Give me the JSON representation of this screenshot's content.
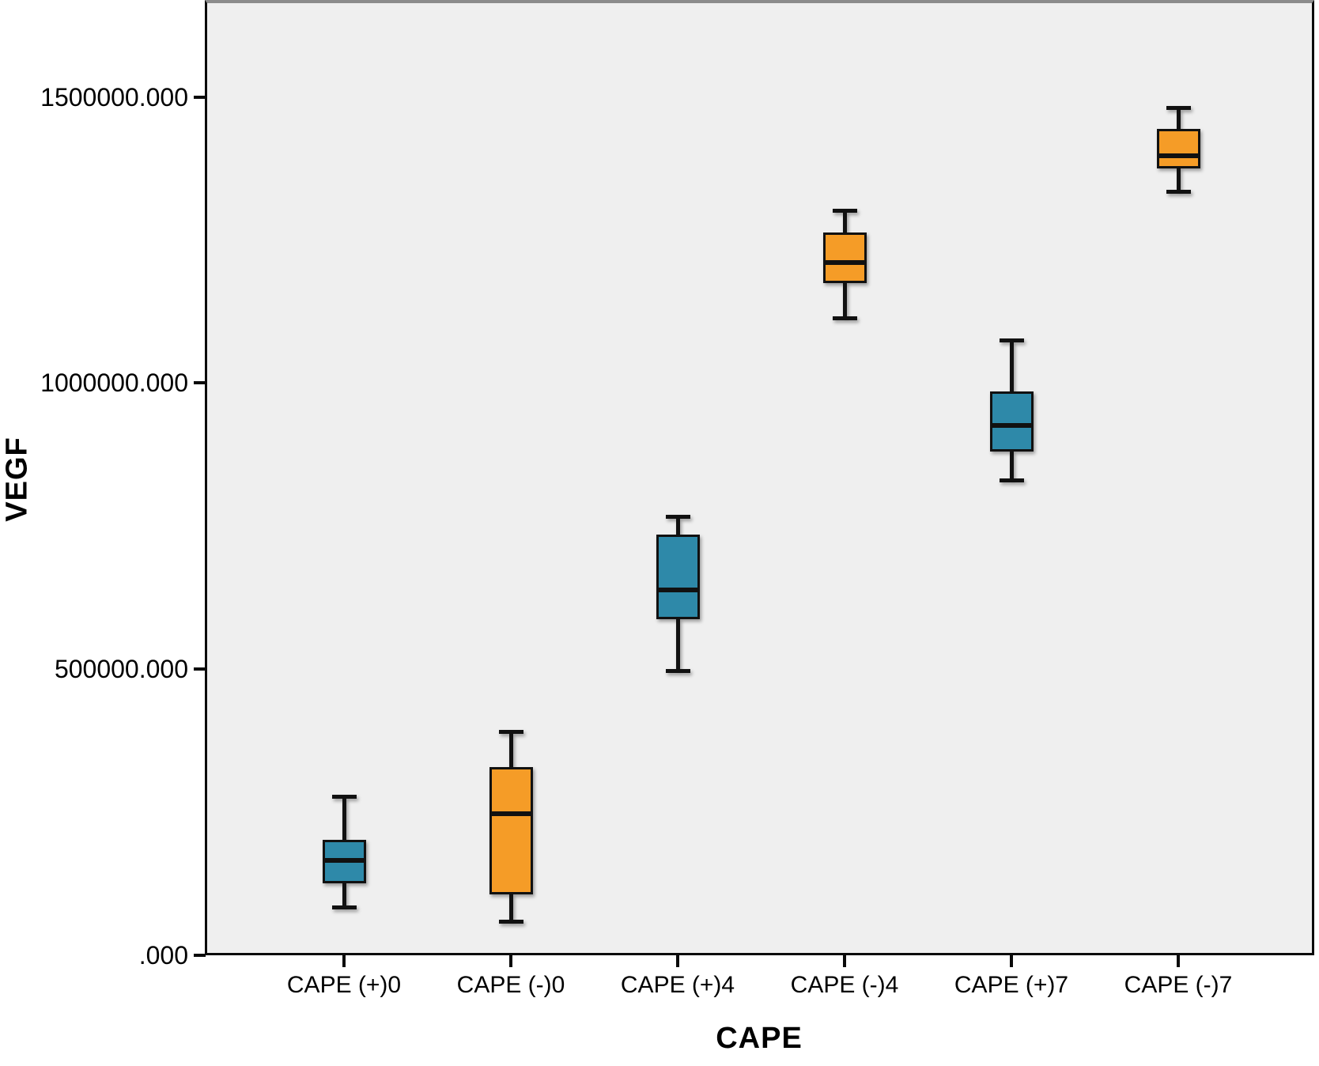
{
  "figure": {
    "background": "#FFFFFF",
    "plot_background": "#EFEFEF",
    "frame_color": "#0A0A0A",
    "top_border_color": "#8C8C8C"
  },
  "chart_data": {
    "type": "boxplot",
    "title": "",
    "xlabel": "CAPE",
    "ylabel": "VEGF",
    "grid": false,
    "legend": false,
    "ylim": [
      0,
      1664000
    ],
    "y_ticks": [
      {
        "value": 0,
        "label": ".000"
      },
      {
        "value": 500000,
        "label": "500000.000"
      },
      {
        "value": 1000000,
        "label": "1000000.000"
      },
      {
        "value": 1500000,
        "label": "1500000.000"
      }
    ],
    "categories": [
      "CAPE (+)0",
      "CAPE (-)0",
      "CAPE (+)4",
      "CAPE (-)4",
      "CAPE (+)7",
      "CAPE (-)7"
    ],
    "boxes": [
      {
        "category": "CAPE (+)0",
        "color_key": "teal",
        "whisker_low": 83000,
        "q1": 126000,
        "median": 166000,
        "q3": 202000,
        "whisker_high": 278000
      },
      {
        "category": "CAPE (-)0",
        "color_key": "orange",
        "whisker_low": 58000,
        "q1": 106000,
        "median": 247000,
        "q3": 329000,
        "whisker_high": 391000
      },
      {
        "category": "CAPE (+)4",
        "color_key": "teal",
        "whisker_low": 496000,
        "q1": 588000,
        "median": 639000,
        "q3": 735000,
        "whisker_high": 767000
      },
      {
        "category": "CAPE (-)4",
        "color_key": "orange",
        "whisker_low": 1113000,
        "q1": 1175000,
        "median": 1210000,
        "q3": 1263000,
        "whisker_high": 1302000
      },
      {
        "category": "CAPE (+)7",
        "color_key": "teal",
        "whisker_low": 829000,
        "q1": 880000,
        "median": 926000,
        "q3": 986000,
        "whisker_high": 1075000
      },
      {
        "category": "CAPE (-)7",
        "color_key": "orange",
        "whisker_low": 1334000,
        "q1": 1375000,
        "median": 1397000,
        "q3": 1444000,
        "whisker_high": 1482000
      }
    ],
    "colors": {
      "teal": "#2E89A9",
      "orange": "#F59C27",
      "line": "#111111"
    }
  }
}
